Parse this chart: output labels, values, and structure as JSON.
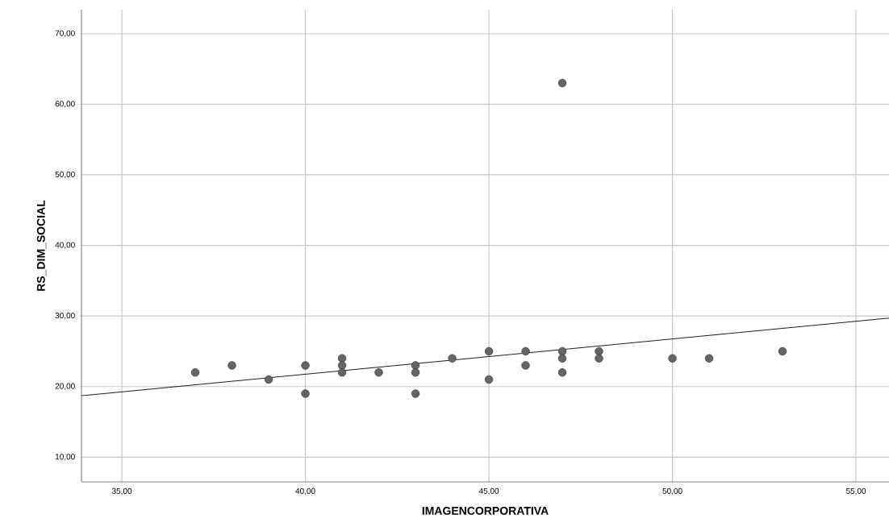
{
  "chart_data": {
    "type": "scatter",
    "xlabel": "IMAGENCORPORATIVA",
    "ylabel": "RS_DIM_SOCIAL",
    "xlim": [
      33.9,
      55.9
    ],
    "ylim": [
      6.5,
      73.4
    ],
    "xticks": [
      {
        "value": 35,
        "label": "35,00"
      },
      {
        "value": 40,
        "label": "40,00"
      },
      {
        "value": 45,
        "label": "45,00"
      },
      {
        "value": 50,
        "label": "50,00"
      },
      {
        "value": 55,
        "label": "55,00"
      }
    ],
    "yticks": [
      {
        "value": 10,
        "label": "10,00"
      },
      {
        "value": 20,
        "label": "20,00"
      },
      {
        "value": 30,
        "label": "30,00"
      },
      {
        "value": 40,
        "label": "40,00"
      },
      {
        "value": 50,
        "label": "50,00"
      },
      {
        "value": 60,
        "label": "60,00"
      },
      {
        "value": 70,
        "label": "70,00"
      }
    ],
    "grid": true,
    "series": [
      {
        "marker": "circle",
        "color": "#666666",
        "x": [
          37,
          38,
          39,
          40,
          40,
          41,
          41,
          41,
          42,
          43,
          43,
          43,
          44,
          45,
          45,
          46,
          46,
          47,
          47,
          47,
          47,
          48,
          48,
          50,
          51,
          53
        ],
        "values": [
          22,
          23,
          21,
          23,
          19,
          24,
          23,
          22,
          22,
          23,
          22,
          19,
          24,
          25,
          21,
          25,
          23,
          63,
          25,
          24,
          22,
          25,
          24,
          24,
          24,
          25
        ]
      },
      {
        "type": "line",
        "marker": "none",
        "color": "#000000",
        "x": [
          33.9,
          55.9
        ],
        "values": [
          18.7,
          29.7
        ]
      }
    ]
  }
}
